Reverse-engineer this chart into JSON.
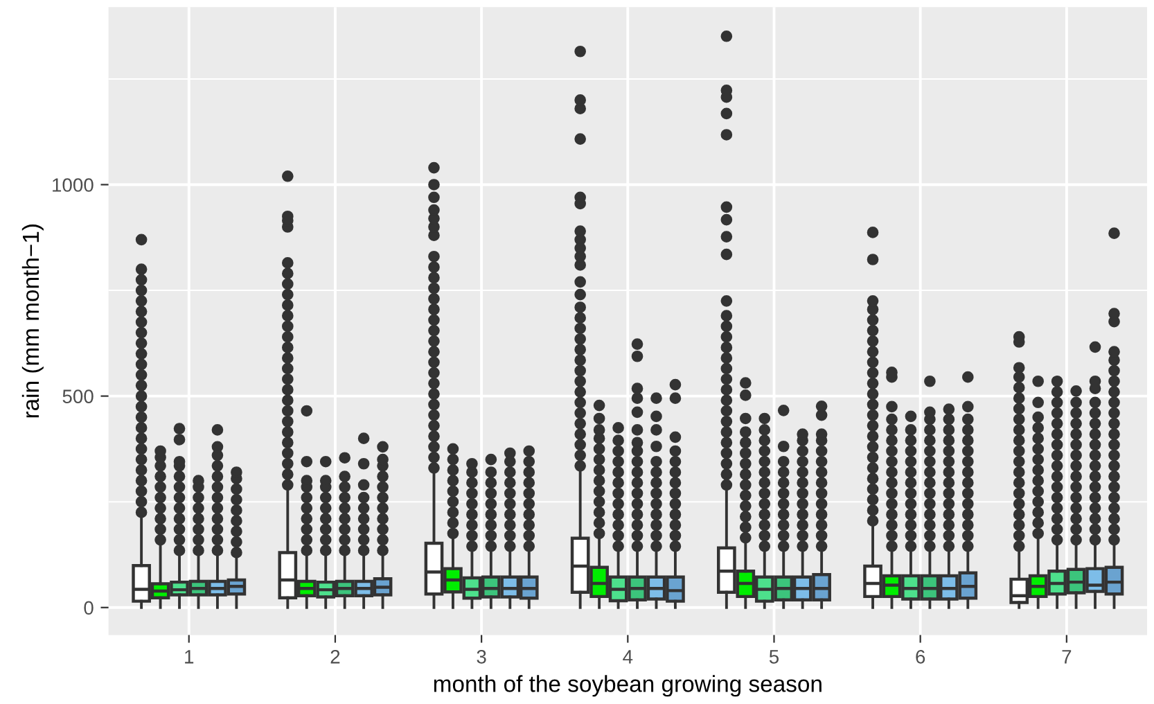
{
  "chart_data": {
    "type": "box",
    "xlabel": "month of the soybean growing season",
    "ylabel": "rain (mm month−1)",
    "categories": [
      "1",
      "2",
      "3",
      "4",
      "5",
      "6",
      "7"
    ],
    "ylim": [
      -65,
      1420
    ],
    "yticks": [
      0,
      {
        "value": 250,
        "label": null
      },
      500,
      {
        "value": 750,
        "label": null
      },
      1000,
      {
        "value": 1250,
        "label": null
      }
    ],
    "grid": true,
    "series": [
      {
        "color": "#ffffff",
        "boxes": [
          {
            "low": 0,
            "q1": 15,
            "median": 43,
            "q3": 99,
            "high": 216,
            "outliers": [
              225,
              250,
              275,
              300,
              325,
              350,
              375,
              400,
              425,
              450,
              475,
              500,
              525,
              550,
              575,
              600,
              625,
              650,
              675,
              700,
              725,
              750,
              775,
              800,
              870
            ]
          },
          {
            "low": 0,
            "q1": 23,
            "median": 65,
            "q3": 130,
            "high": 283,
            "outliers": [
              290,
              315,
              340,
              365,
              390,
              415,
              440,
              465,
              490,
              515,
              540,
              565,
              590,
              615,
              640,
              665,
              690,
              715,
              740,
              765,
              790,
              815,
              900,
              915,
              925,
              1020
            ]
          },
          {
            "low": 0,
            "q1": 32,
            "median": 84,
            "q3": 152,
            "high": 321,
            "outliers": [
              330,
              355,
              380,
              405,
              430,
              455,
              480,
              505,
              530,
              555,
              580,
              605,
              630,
              655,
              680,
              705,
              730,
              755,
              780,
              805,
              830,
              880,
              900,
              920,
              940,
              970,
              1000,
              1040
            ]
          },
          {
            "low": 0,
            "q1": 36,
            "median": 98,
            "q3": 164,
            "high": 327,
            "outliers": [
              335,
              360,
              385,
              410,
              435,
              460,
              485,
              510,
              535,
              560,
              585,
              610,
              635,
              660,
              685,
              710,
              740,
              770,
              810,
              830,
              850,
              870,
              890,
              955,
              970,
              1108,
              1180,
              1200,
              1315
            ]
          },
          {
            "low": 0,
            "q1": 36,
            "median": 86,
            "q3": 141,
            "high": 283,
            "outliers": [
              290,
              315,
              340,
              365,
              390,
              415,
              440,
              465,
              490,
              515,
              540,
              565,
              590,
              615,
              640,
              665,
              690,
              725,
              835,
              877,
              917,
              947,
              1118,
              1168,
              1207,
              1223,
              1351
            ]
          },
          {
            "low": 0,
            "q1": 26,
            "median": 57,
            "q3": 98,
            "high": 196,
            "outliers": [
              205,
              230,
              255,
              280,
              305,
              330,
              355,
              380,
              405,
              430,
              455,
              480,
              505,
              530,
              555,
              580,
              605,
              630,
              655,
              680,
              705,
              725,
              823,
              887
            ]
          },
          {
            "low": 0,
            "q1": 12,
            "median": 28,
            "q3": 67,
            "high": 135,
            "outliers": [
              145,
              170,
              195,
              220,
              245,
              270,
              295,
              320,
              345,
              370,
              395,
              420,
              445,
              470,
              495,
              520,
              545,
              567,
              628,
              640
            ]
          }
        ]
      },
      {
        "color": "#00ee00",
        "boxes": [
          {
            "low": 0,
            "q1": 23,
            "median": 39,
            "q3": 56,
            "high": 150,
            "outliers": [
              160,
              185,
              210,
              235,
              260,
              285,
              310,
              335,
              355,
              370
            ]
          },
          {
            "low": 0,
            "q1": 28,
            "median": 45,
            "q3": 62,
            "high": 125,
            "outliers": [
              135,
              160,
              185,
              210,
              235,
              260,
              285,
              300,
              345,
              465
            ]
          },
          {
            "low": 0,
            "q1": 37,
            "median": 65,
            "q3": 92,
            "high": 165,
            "outliers": [
              175,
              200,
              225,
              250,
              275,
              300,
              325,
              350,
              375
            ]
          },
          {
            "low": 0,
            "q1": 26,
            "median": 57,
            "q3": 95,
            "high": 168,
            "outliers": [
              175,
              200,
              225,
              250,
              275,
              300,
              325,
              350,
              375,
              400,
              420,
              447,
              478
            ]
          },
          {
            "low": 0,
            "q1": 26,
            "median": 57,
            "q3": 86,
            "high": 157,
            "outliers": [
              165,
              190,
              215,
              240,
              265,
              290,
              315,
              340,
              365,
              390,
              415,
              447,
              502,
              531
            ]
          },
          {
            "low": 0,
            "q1": 26,
            "median": 53,
            "q3": 75,
            "high": 135,
            "outliers": [
              145,
              170,
              195,
              220,
              245,
              270,
              295,
              320,
              345,
              370,
              395,
              420,
              445,
              475,
              545,
              556
            ]
          },
          {
            "low": 0,
            "q1": 26,
            "median": 50,
            "q3": 75,
            "high": 167,
            "outliers": [
              175,
              200,
              225,
              250,
              275,
              300,
              325,
              350,
              375,
              400,
              425,
              450,
              485,
              535
            ]
          }
        ]
      },
      {
        "color": "#4de08c",
        "boxes": [
          {
            "low": 0,
            "q1": 30,
            "median": 42,
            "q3": 60,
            "high": 125,
            "outliers": [
              135,
              160,
              185,
              210,
              235,
              260,
              285,
              310,
              335,
              345,
              397,
              423
            ]
          },
          {
            "low": 0,
            "q1": 25,
            "median": 42,
            "q3": 60,
            "high": 125,
            "outliers": [
              135,
              160,
              185,
              210,
              235,
              260,
              285,
              300,
              345
            ]
          },
          {
            "low": 0,
            "q1": 22,
            "median": 43,
            "q3": 70,
            "high": 135,
            "outliers": [
              145,
              170,
              195,
              220,
              245,
              270,
              295,
              320,
              340
            ]
          },
          {
            "low": 0,
            "q1": 16,
            "median": 43,
            "q3": 72,
            "high": 135,
            "outliers": [
              145,
              170,
              195,
              220,
              245,
              270,
              295,
              320,
              345,
              370,
              395,
              425
            ]
          },
          {
            "low": 0,
            "q1": 15,
            "median": 43,
            "q3": 72,
            "high": 135,
            "outliers": [
              145,
              170,
              195,
              220,
              245,
              270,
              295,
              320,
              345,
              370,
              395,
              420,
              447
            ]
          },
          {
            "low": 0,
            "q1": 20,
            "median": 45,
            "q3": 75,
            "high": 135,
            "outliers": [
              145,
              170,
              195,
              220,
              245,
              270,
              295,
              320,
              345,
              370,
              395,
              420,
              452
            ]
          },
          {
            "low": 0,
            "q1": 32,
            "median": 57,
            "q3": 86,
            "high": 151,
            "outliers": [
              160,
              185,
              210,
              235,
              260,
              285,
              310,
              335,
              360,
              385,
              410,
              435,
              460,
              485,
              510,
              535
            ]
          }
        ]
      },
      {
        "color": "#3cc47c",
        "boxes": [
          {
            "low": 0,
            "q1": 30,
            "median": 45,
            "q3": 62,
            "high": 125,
            "outliers": [
              135,
              160,
              185,
              210,
              235,
              260,
              285,
              300
            ]
          },
          {
            "low": 0,
            "q1": 28,
            "median": 45,
            "q3": 62,
            "high": 125,
            "outliers": [
              135,
              160,
              185,
              210,
              235,
              260,
              285,
              310,
              354
            ]
          },
          {
            "low": 0,
            "q1": 25,
            "median": 45,
            "q3": 72,
            "high": 135,
            "outliers": [
              145,
              170,
              195,
              220,
              245,
              270,
              295,
              320,
              350
            ]
          },
          {
            "low": 0,
            "q1": 18,
            "median": 45,
            "q3": 72,
            "high": 135,
            "outliers": [
              145,
              170,
              195,
              220,
              245,
              270,
              295,
              320,
              345,
              370,
              390,
              420,
              462,
              495,
              518,
              594,
              623
            ]
          },
          {
            "low": 0,
            "q1": 18,
            "median": 45,
            "q3": 72,
            "high": 135,
            "outliers": [
              145,
              170,
              195,
              220,
              245,
              270,
              295,
              320,
              345,
              381,
              466
            ]
          },
          {
            "low": 0,
            "q1": 20,
            "median": 45,
            "q3": 75,
            "high": 135,
            "outliers": [
              145,
              170,
              195,
              220,
              245,
              270,
              295,
              320,
              345,
              370,
              395,
              420,
              445,
              462,
              535
            ]
          },
          {
            "low": 0,
            "q1": 35,
            "median": 60,
            "q3": 90,
            "high": 151,
            "outliers": [
              160,
              185,
              210,
              235,
              260,
              285,
              310,
              335,
              360,
              385,
              410,
              435,
              460,
              485,
              512
            ]
          }
        ]
      },
      {
        "color": "#7dbde8",
        "boxes": [
          {
            "low": 0,
            "q1": 30,
            "median": 45,
            "q3": 62,
            "high": 125,
            "outliers": [
              135,
              160,
              185,
              210,
              235,
              260,
              285,
              310,
              335,
              360,
              380,
              420
            ]
          },
          {
            "low": 0,
            "q1": 28,
            "median": 45,
            "q3": 62,
            "high": 125,
            "outliers": [
              135,
              160,
              185,
              210,
              235,
              260,
              290,
              340,
              400
            ]
          },
          {
            "low": 0,
            "q1": 25,
            "median": 45,
            "q3": 72,
            "high": 135,
            "outliers": [
              145,
              170,
              195,
              220,
              245,
              270,
              295,
              320,
              345,
              365
            ]
          },
          {
            "low": 0,
            "q1": 20,
            "median": 45,
            "q3": 72,
            "high": 135,
            "outliers": [
              145,
              170,
              195,
              220,
              245,
              270,
              295,
              320,
              345,
              381,
              420,
              452,
              495
            ]
          },
          {
            "low": 0,
            "q1": 18,
            "median": 45,
            "q3": 72,
            "high": 135,
            "outliers": [
              145,
              170,
              195,
              220,
              245,
              270,
              295,
              320,
              345,
              370,
              395,
              410
            ]
          },
          {
            "low": 0,
            "q1": 20,
            "median": 45,
            "q3": 75,
            "high": 135,
            "outliers": [
              145,
              170,
              195,
              220,
              245,
              270,
              295,
              320,
              345,
              370,
              395,
              420,
              445,
              469
            ]
          },
          {
            "low": 0,
            "q1": 38,
            "median": 53,
            "q3": 92,
            "high": 151,
            "outliers": [
              160,
              185,
              210,
              235,
              260,
              285,
              310,
              335,
              360,
              385,
              410,
              435,
              460,
              485,
              518,
              535,
              616
            ]
          }
        ]
      },
      {
        "color": "#6aa3d0",
        "boxes": [
          {
            "low": 0,
            "q1": 32,
            "median": 50,
            "q3": 65,
            "high": 120,
            "outliers": [
              130,
              155,
              180,
              205,
              230,
              255,
              280,
              305,
              320
            ]
          },
          {
            "low": 0,
            "q1": 30,
            "median": 48,
            "q3": 68,
            "high": 125,
            "outliers": [
              135,
              160,
              185,
              210,
              235,
              260,
              285,
              310,
              335,
              350,
              380
            ]
          },
          {
            "low": 0,
            "q1": 22,
            "median": 45,
            "q3": 72,
            "high": 135,
            "outliers": [
              145,
              170,
              195,
              220,
              245,
              270,
              295,
              320,
              345,
              370
            ]
          },
          {
            "low": 0,
            "q1": 15,
            "median": 40,
            "q3": 72,
            "high": 135,
            "outliers": [
              145,
              170,
              195,
              220,
              245,
              270,
              295,
              320,
              345,
              370,
              403,
              495,
              527
            ]
          },
          {
            "low": 0,
            "q1": 18,
            "median": 45,
            "q3": 78,
            "high": 135,
            "outliers": [
              145,
              170,
              195,
              220,
              245,
              270,
              295,
              320,
              345,
              370,
              395,
              410,
              455,
              476
            ]
          },
          {
            "low": 0,
            "q1": 22,
            "median": 50,
            "q3": 82,
            "high": 135,
            "outliers": [
              145,
              170,
              195,
              220,
              245,
              270,
              295,
              320,
              345,
              370,
              395,
              420,
              445,
              475,
              545
            ]
          },
          {
            "low": 0,
            "q1": 32,
            "median": 60,
            "q3": 95,
            "high": 151,
            "outliers": [
              160,
              185,
              210,
              235,
              260,
              285,
              310,
              335,
              360,
              385,
              410,
              435,
              460,
              485,
              510,
              535,
              560,
              585,
              605,
              676,
              695,
              885
            ]
          }
        ]
      }
    ]
  }
}
